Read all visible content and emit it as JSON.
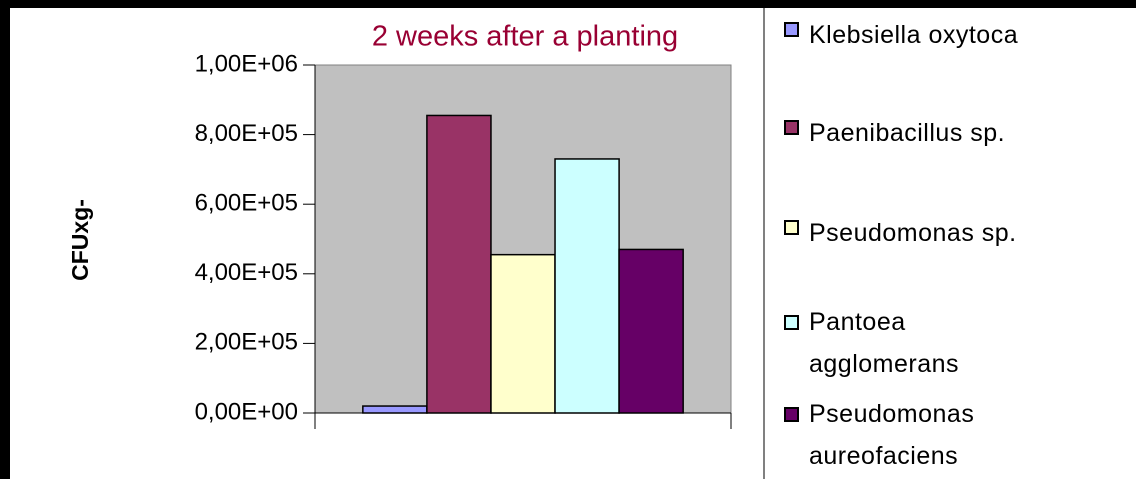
{
  "chart_data": {
    "type": "bar",
    "title": "2 weeks after a  planting",
    "y_label": "CFUxg-",
    "categories": [
      null
    ],
    "series": [
      {
        "name": "Klebsiella oxytoca",
        "color": "#9999ff",
        "values": [
          20000
        ]
      },
      {
        "name": "Paenibacillus sp.",
        "color": "#993366",
        "values": [
          855000
        ]
      },
      {
        "name": "Pseudomonas sp.",
        "color": "#ffffcc",
        "values": [
          455000
        ]
      },
      {
        "name": "Pantoea agglomerans",
        "color": "#ccffff",
        "values": [
          730000
        ]
      },
      {
        "name": "Pseudomonas aureofaciens",
        "color": "#660066",
        "values": [
          470000
        ]
      }
    ],
    "ylim": [
      0,
      1000000
    ],
    "yticks": [
      {
        "value": 0,
        "label": "0,00E+00"
      },
      {
        "value": 200000,
        "label": "2,00E+05"
      },
      {
        "value": 400000,
        "label": "4,00E+05"
      },
      {
        "value": 600000,
        "label": "6,00E+05"
      },
      {
        "value": 800000,
        "label": "8,00E+05"
      },
      {
        "value": 1000000,
        "label": "1,00E+06"
      }
    ],
    "plot_background": "#c0c0c0",
    "legend": "right"
  }
}
